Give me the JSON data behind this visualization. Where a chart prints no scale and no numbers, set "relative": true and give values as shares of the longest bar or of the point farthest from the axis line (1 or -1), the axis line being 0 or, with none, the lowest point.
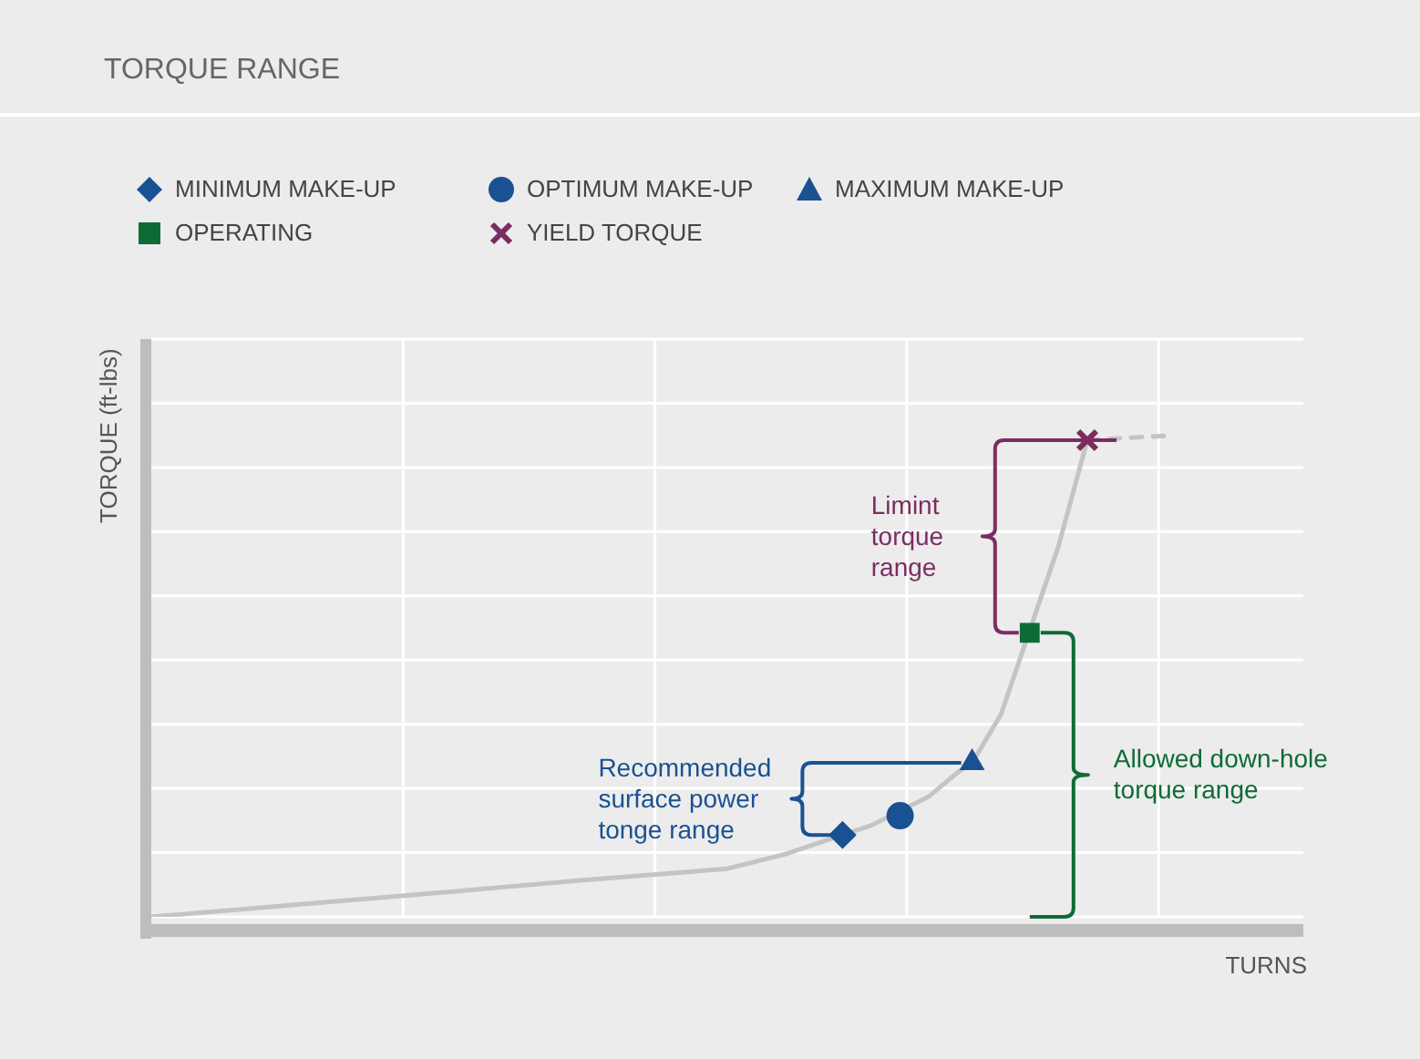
{
  "chart_data": {
    "type": "line",
    "title": "TORQUE RANGE",
    "xlabel": "TURNS",
    "ylabel": "TORQUE (ft-lbs)",
    "relative": true,
    "grid": true,
    "legend": "top left",
    "categories": [
      null,
      null,
      null,
      null,
      null,
      null,
      null,
      null,
      null,
      null,
      null,
      null,
      null,
      null,
      null,
      null,
      null,
      null,
      null,
      null,
      null,
      null,
      null,
      null,
      null,
      null,
      null,
      null,
      null,
      null,
      null,
      null,
      null,
      null,
      null,
      null,
      null,
      null,
      null,
      null,
      null,
      null,
      null,
      null,
      null,
      null,
      null,
      null,
      null,
      null,
      null,
      null,
      null,
      null,
      null,
      null,
      null,
      null,
      null,
      null,
      null,
      null,
      null,
      null,
      null,
      null,
      null,
      null,
      null,
      null,
      null,
      null,
      null,
      null,
      null,
      null,
      null,
      null,
      null,
      null,
      null
    ],
    "series": [
      {
        "color": "#c4c4c4",
        "line_style": "solid",
        "marker": "none",
        "values": [
          0,
          null,
          null,
          null,
          null,
          null,
          null,
          null,
          null,
          null,
          0.025,
          null,
          null,
          null,
          null,
          null,
          null,
          null,
          null,
          null,
          0.05,
          null,
          null,
          null,
          null,
          null,
          null,
          null,
          null,
          null,
          0.076,
          null,
          null,
          null,
          null,
          null,
          null,
          null,
          null,
          null,
          0.1,
          null,
          null,
          null,
          0.13,
          null,
          null,
          0.16,
          0.17,
          null,
          0.19,
          null,
          null,
          null,
          0.25,
          null,
          0.3,
          0.32,
          null,
          0.42,
          null,
          null,
          null,
          0.77,
          null,
          0.99,
          null,
          null,
          null,
          null,
          null,
          null,
          null,
          null,
          null,
          null,
          null,
          null,
          null,
          null,
          null
        ]
      },
      {
        "color": "#c4c4c4",
        "line_style": "dashed",
        "marker": "none",
        "values": [
          null,
          null,
          null,
          null,
          null,
          null,
          null,
          null,
          null,
          null,
          null,
          null,
          null,
          null,
          null,
          null,
          null,
          null,
          null,
          null,
          null,
          null,
          null,
          null,
          null,
          null,
          null,
          null,
          null,
          null,
          null,
          null,
          null,
          null,
          null,
          null,
          null,
          null,
          null,
          null,
          null,
          null,
          null,
          null,
          null,
          null,
          null,
          null,
          null,
          null,
          null,
          null,
          null,
          null,
          null,
          null,
          null,
          null,
          null,
          null,
          null,
          null,
          null,
          null,
          null,
          0.99,
          null,
          null,
          null,
          null,
          null,
          1,
          null,
          null,
          null,
          null,
          null,
          null,
          null,
          null,
          null
        ]
      },
      {
        "name": "MINIMUM MAKE-UP",
        "color": "#1a5192",
        "marker": "diamond",
        "values": [
          null,
          null,
          null,
          null,
          null,
          null,
          null,
          null,
          null,
          null,
          null,
          null,
          null,
          null,
          null,
          null,
          null,
          null,
          null,
          null,
          null,
          null,
          null,
          null,
          null,
          null,
          null,
          null,
          null,
          null,
          null,
          null,
          null,
          null,
          null,
          null,
          null,
          null,
          null,
          null,
          null,
          null,
          null,
          null,
          null,
          null,
          null,
          null,
          0.17,
          null,
          null,
          null,
          null,
          null,
          null,
          null,
          null,
          null,
          null,
          null,
          null,
          null,
          null,
          null,
          null,
          null,
          null,
          null,
          null,
          null,
          null,
          null,
          null,
          null,
          null,
          null,
          null,
          null,
          null,
          null,
          null
        ]
      },
      {
        "name": "OPTIMUM MAKE-UP",
        "color": "#1a5192",
        "marker": "circle",
        "values": [
          null,
          null,
          null,
          null,
          null,
          null,
          null,
          null,
          null,
          null,
          null,
          null,
          null,
          null,
          null,
          null,
          null,
          null,
          null,
          null,
          null,
          null,
          null,
          null,
          null,
          null,
          null,
          null,
          null,
          null,
          null,
          null,
          null,
          null,
          null,
          null,
          null,
          null,
          null,
          null,
          null,
          null,
          null,
          null,
          null,
          null,
          null,
          null,
          null,
          null,
          null,
          null,
          0.21,
          null,
          null,
          null,
          null,
          null,
          null,
          null,
          null,
          null,
          null,
          null,
          null,
          null,
          null,
          null,
          null,
          null,
          null,
          null,
          null,
          null,
          null,
          null,
          null,
          null,
          null,
          null,
          null
        ]
      },
      {
        "name": "MAXIMUM MAKE-UP",
        "color": "#1a5192",
        "marker": "triangle",
        "values": [
          null,
          null,
          null,
          null,
          null,
          null,
          null,
          null,
          null,
          null,
          null,
          null,
          null,
          null,
          null,
          null,
          null,
          null,
          null,
          null,
          null,
          null,
          null,
          null,
          null,
          null,
          null,
          null,
          null,
          null,
          null,
          null,
          null,
          null,
          null,
          null,
          null,
          null,
          null,
          null,
          null,
          null,
          null,
          null,
          null,
          null,
          null,
          null,
          null,
          null,
          null,
          null,
          null,
          null,
          null,
          null,
          null,
          0.32,
          null,
          null,
          null,
          null,
          null,
          null,
          null,
          null,
          null,
          null,
          null,
          null,
          null,
          null,
          null,
          null,
          null,
          null,
          null,
          null,
          null,
          null,
          null
        ]
      },
      {
        "name": "OPERATING",
        "color": "#0e6b35",
        "marker": "square",
        "values": [
          null,
          null,
          null,
          null,
          null,
          null,
          null,
          null,
          null,
          null,
          null,
          null,
          null,
          null,
          null,
          null,
          null,
          null,
          null,
          null,
          null,
          null,
          null,
          null,
          null,
          null,
          null,
          null,
          null,
          null,
          null,
          null,
          null,
          null,
          null,
          null,
          null,
          null,
          null,
          null,
          null,
          null,
          null,
          null,
          null,
          null,
          null,
          null,
          null,
          null,
          null,
          null,
          null,
          null,
          null,
          null,
          null,
          null,
          null,
          null,
          null,
          0.59,
          null,
          null,
          null,
          null,
          null,
          null,
          null,
          null,
          null,
          null,
          null,
          null,
          null,
          null,
          null,
          null,
          null,
          null,
          null
        ]
      },
      {
        "name": "YIELD TORQUE",
        "color": "#7b2d62",
        "marker": "cross",
        "values": [
          null,
          null,
          null,
          null,
          null,
          null,
          null,
          null,
          null,
          null,
          null,
          null,
          null,
          null,
          null,
          null,
          null,
          null,
          null,
          null,
          null,
          null,
          null,
          null,
          null,
          null,
          null,
          null,
          null,
          null,
          null,
          null,
          null,
          null,
          null,
          null,
          null,
          null,
          null,
          null,
          null,
          null,
          null,
          null,
          null,
          null,
          null,
          null,
          null,
          null,
          null,
          null,
          null,
          null,
          null,
          null,
          null,
          null,
          null,
          null,
          null,
          null,
          null,
          null,
          null,
          0.99,
          null,
          null,
          null,
          null,
          null,
          null,
          null,
          null,
          null,
          null,
          null,
          null,
          null,
          null,
          null
        ]
      }
    ],
    "annotations": [
      "Recommended surface power tonge range",
      "Limint torque range",
      "Allowed down-hole torque range"
    ]
  }
}
